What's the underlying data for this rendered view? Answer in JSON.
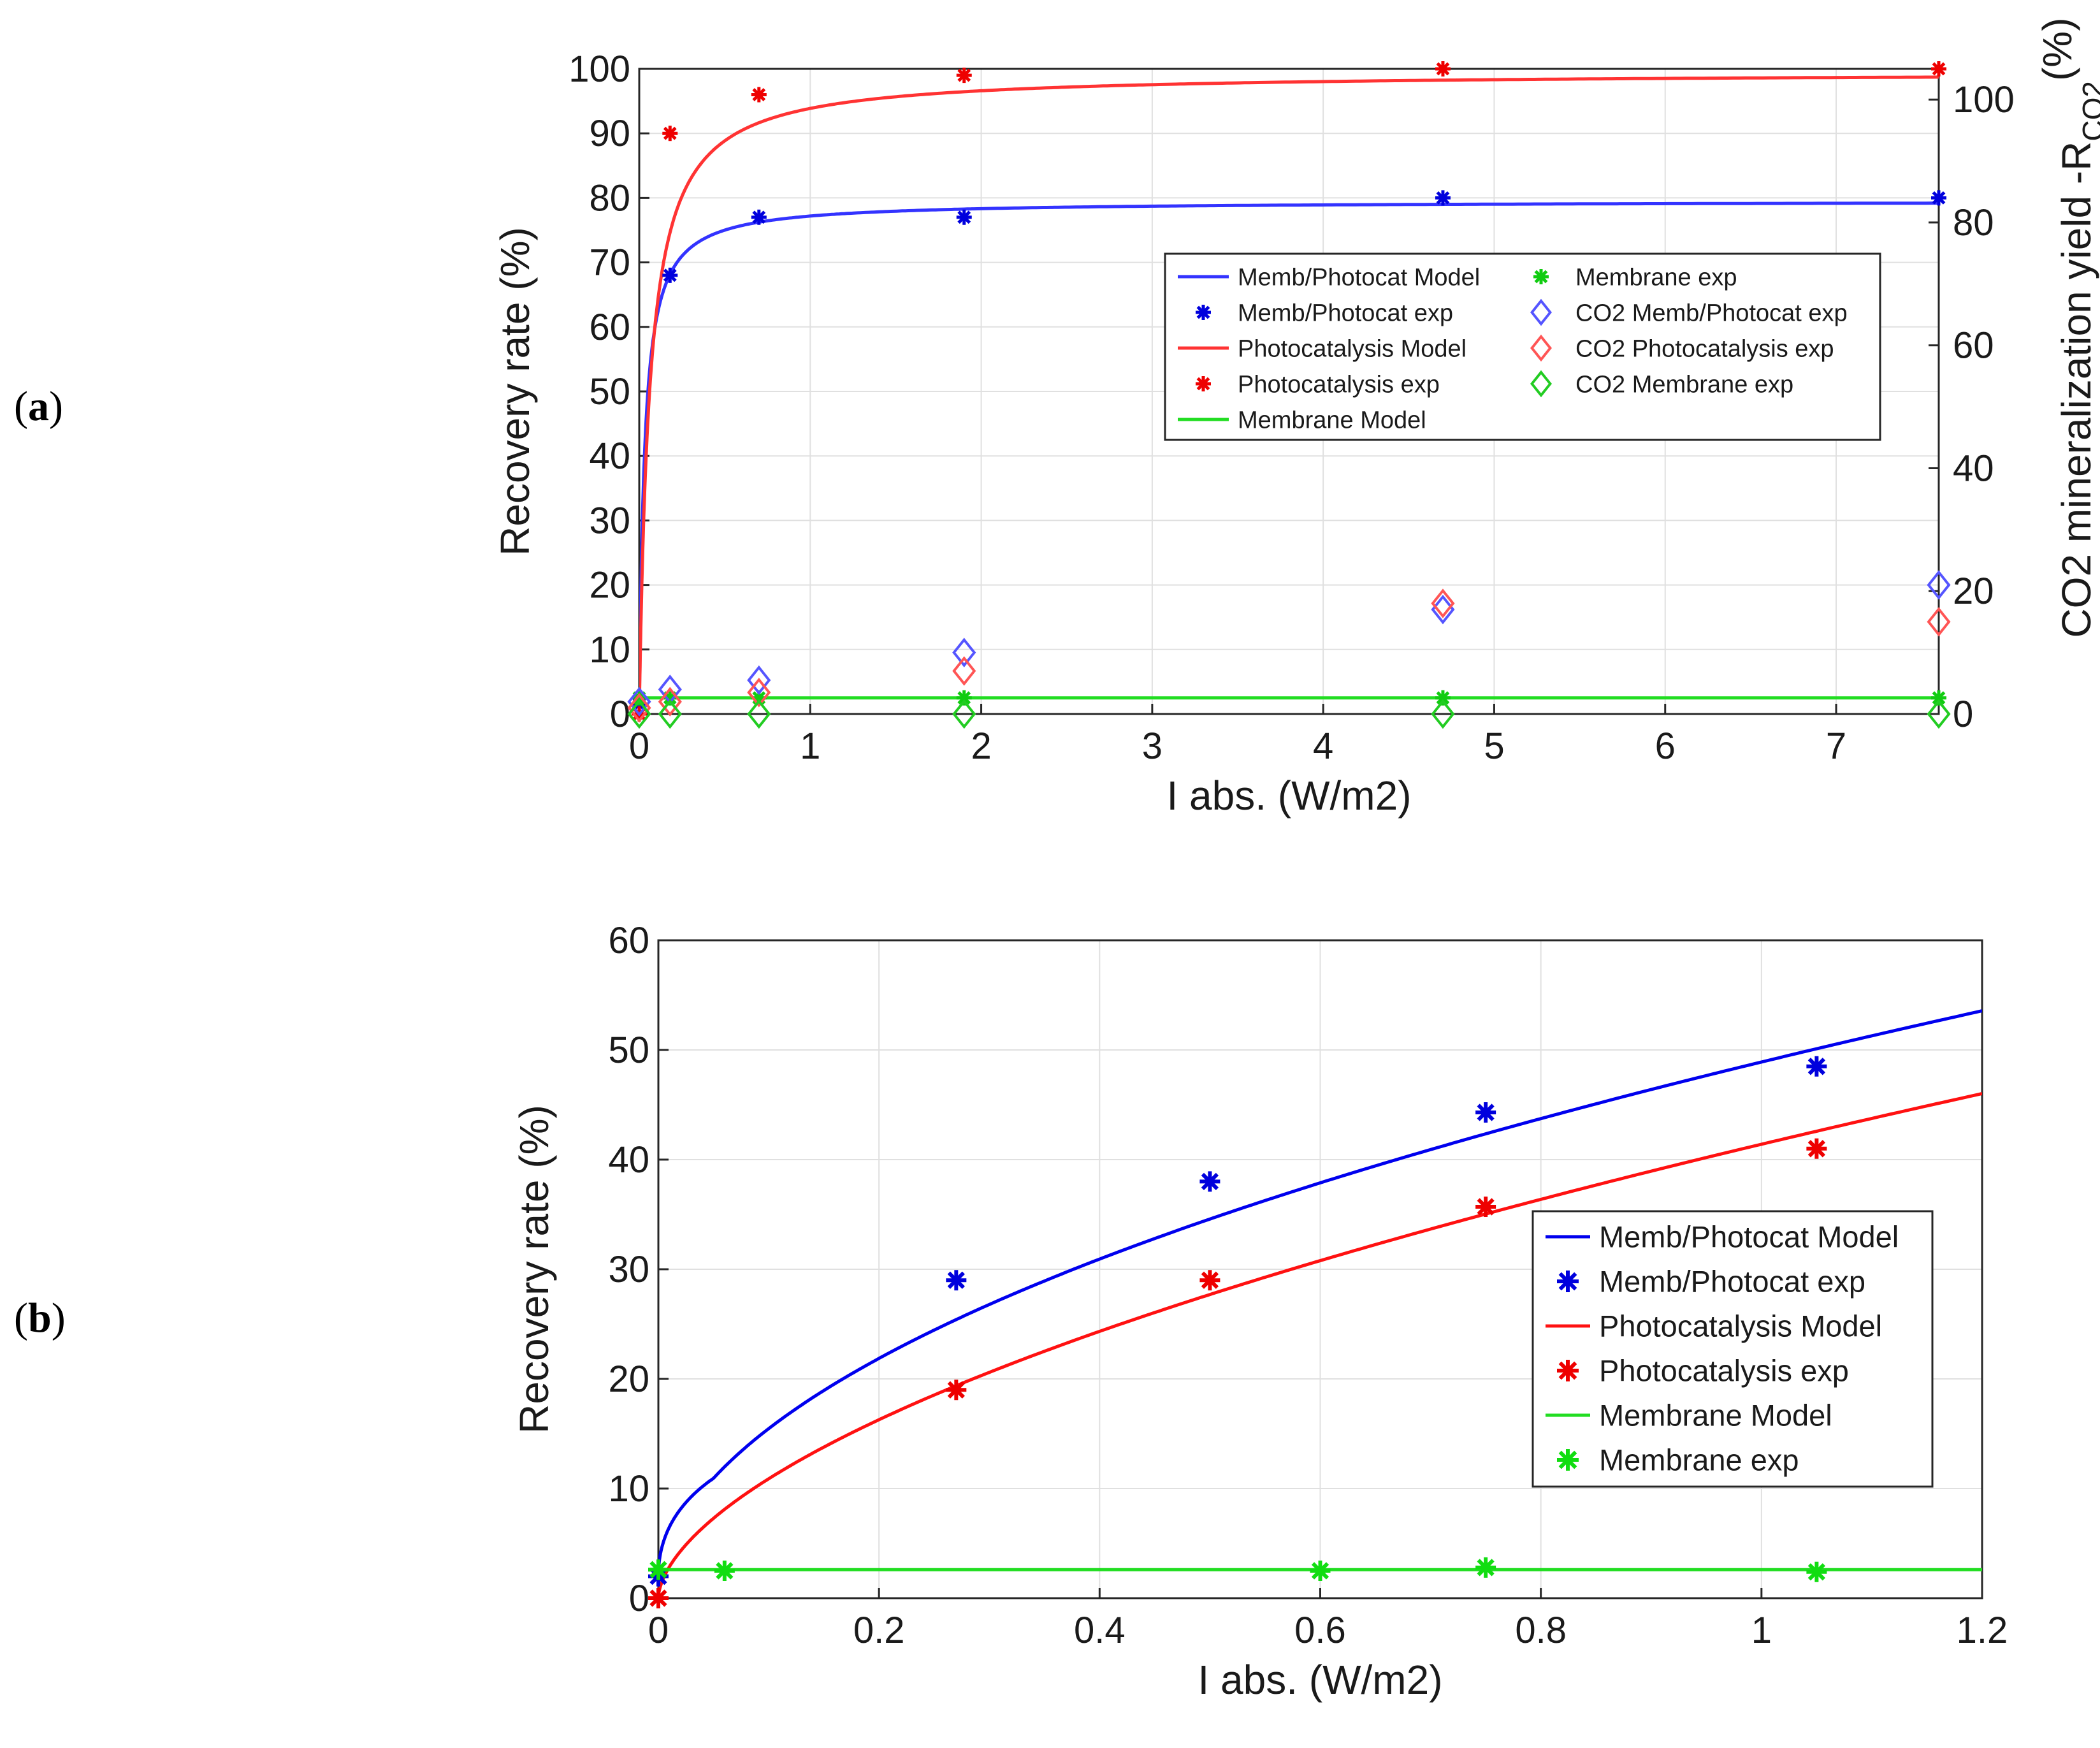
{
  "panel_labels": {
    "a": {
      "open": "(",
      "letter": "a",
      "close": ")"
    },
    "b": {
      "open": "(",
      "letter": "b",
      "close": ")"
    }
  },
  "chart_data": [
    {
      "id": "a",
      "type": "line",
      "title": "",
      "xlabel": "I abs. (W/m2)",
      "ylabel": "Recovery rate (%)",
      "y2label_main": "CO2 mineralization yield -R",
      "y2label_sub": "CO2",
      "y2label_unit": "(%)",
      "xlim": [
        0,
        7.6
      ],
      "ylim": [
        0,
        100
      ],
      "y2lim": [
        0,
        105
      ],
      "xticks": [
        "0",
        "1",
        "2",
        "3",
        "4",
        "5",
        "6",
        "7"
      ],
      "yticks": [
        "0",
        "10",
        "20",
        "30",
        "40",
        "50",
        "60",
        "70",
        "80",
        "90",
        "100"
      ],
      "y2ticks": [
        "0",
        "20",
        "40",
        "60",
        "80",
        "100"
      ],
      "grid": true,
      "legend_position": "center-right",
      "legend": [
        {
          "label": "Memb/Photocat Model",
          "color": "#3333ff",
          "marker": "line"
        },
        {
          "label": "Memb/Photocat exp",
          "color": "#0000dd",
          "marker": "star"
        },
        {
          "label": "Photocatalysis Model",
          "color": "#ff3333",
          "marker": "line"
        },
        {
          "label": "Photocatalysis exp",
          "color": "#ee0000",
          "marker": "star"
        },
        {
          "label": "Membrane Model",
          "color": "#22dd22",
          "marker": "line"
        },
        {
          "label": "Membrane exp",
          "color": "#11cc11",
          "marker": "star"
        },
        {
          "label": "CO2 Memb/Photocat exp",
          "color": "#5555ff",
          "marker": "diamond"
        },
        {
          "label": "CO2 Photocatalysis exp",
          "color": "#ff5555",
          "marker": "diamond"
        },
        {
          "label": "CO2 Membrane exp",
          "color": "#22cc22",
          "marker": "diamond"
        }
      ],
      "series": [
        {
          "name": "Memb/Photocat Model",
          "kind": "model",
          "color": "#3333ff",
          "ymax": 79.5,
          "k": 0.03,
          "axis": "left"
        },
        {
          "name": "Photocatalysis Model",
          "kind": "model",
          "color": "#ff3333",
          "ymax": 99.5,
          "k": 0.06,
          "axis": "left"
        },
        {
          "name": "Membrane Model",
          "kind": "flat",
          "color": "#22dd22",
          "value": 2.5,
          "axis": "left"
        },
        {
          "name": "Memb/Photocat exp",
          "kind": "star",
          "color": "#0000dd",
          "axis": "left",
          "x": [
            0,
            0.18,
            0.7,
            1.9,
            4.7,
            7.6
          ],
          "y": [
            1.5,
            68,
            77,
            77,
            80,
            80
          ]
        },
        {
          "name": "Photocatalysis exp",
          "kind": "star",
          "color": "#ee0000",
          "axis": "left",
          "x": [
            0,
            0.18,
            0.7,
            1.9,
            4.7,
            7.6
          ],
          "y": [
            0,
            90,
            96,
            99,
            100,
            100
          ]
        },
        {
          "name": "Membrane exp",
          "kind": "star",
          "color": "#11cc11",
          "axis": "left",
          "x": [
            0,
            0.18,
            0.7,
            1.9,
            4.7,
            7.6
          ],
          "y": [
            2.5,
            2.5,
            2.5,
            2.5,
            2.5,
            2.5
          ]
        },
        {
          "name": "CO2 Memb/Photocat exp",
          "kind": "diamond",
          "color": "#5555ff",
          "axis": "right",
          "x": [
            0,
            0.18,
            0.7,
            1.9,
            4.7,
            7.6
          ],
          "y": [
            2,
            4,
            5.5,
            10,
            17,
            21
          ]
        },
        {
          "name": "CO2 Photocatalysis exp",
          "kind": "diamond",
          "color": "#ff5555",
          "axis": "right",
          "x": [
            0,
            0.18,
            0.7,
            1.9,
            4.7,
            7.6
          ],
          "y": [
            1,
            2,
            3.5,
            7,
            18,
            15
          ]
        },
        {
          "name": "CO2 Membrane exp",
          "kind": "diamond",
          "color": "#22cc22",
          "axis": "right",
          "x": [
            0,
            0.18,
            0.7,
            1.9,
            4.7,
            7.6
          ],
          "y": [
            0,
            0,
            0,
            0,
            0,
            0
          ]
        }
      ]
    },
    {
      "id": "b",
      "type": "line",
      "title": "",
      "xlabel": "I abs. (W/m2)",
      "ylabel": "Recovery rate (%)",
      "xlim": [
        0,
        1.2
      ],
      "ylim": [
        0,
        60
      ],
      "xticks": [
        "0",
        "0.2",
        "0.4",
        "0.6",
        "0.8",
        "1",
        "1.2"
      ],
      "yticks": [
        "0",
        "10",
        "20",
        "30",
        "40",
        "50",
        "60"
      ],
      "grid": true,
      "legend_position": "center-right",
      "legend": [
        {
          "label": "Memb/Photocat Model",
          "color": "#0000ee",
          "marker": "line"
        },
        {
          "label": "Memb/Photocat exp",
          "color": "#0000dd",
          "marker": "star"
        },
        {
          "label": "Photocatalysis Model",
          "color": "#ff1111",
          "marker": "line"
        },
        {
          "label": "Photocatalysis exp",
          "color": "#ee0000",
          "marker": "star"
        },
        {
          "label": "Membrane Model",
          "color": "#22dd22",
          "marker": "line"
        },
        {
          "label": "Membrane exp",
          "color": "#11dd11",
          "marker": "star"
        }
      ],
      "series": [
        {
          "name": "Memb/Photocat Model",
          "kind": "power",
          "color": "#0000ee",
          "a": 48.9,
          "p": 0.5
        },
        {
          "name": "Photocatalysis Model",
          "kind": "power",
          "color": "#ff1111",
          "a": 41.4,
          "p": 0.58
        },
        {
          "name": "Membrane Model",
          "kind": "flat",
          "color": "#22dd22",
          "value": 2.6
        },
        {
          "name": "Memb/Photocat exp",
          "kind": "star",
          "color": "#0000dd",
          "x": [
            0,
            0.27,
            0.5,
            0.75,
            1.05
          ],
          "y": [
            2,
            29,
            38,
            44.3,
            48.5
          ]
        },
        {
          "name": "Photocatalysis exp",
          "kind": "star",
          "color": "#ee0000",
          "x": [
            0,
            0.27,
            0.5,
            0.75,
            1.05
          ],
          "y": [
            0,
            19,
            29,
            35.7,
            41
          ]
        },
        {
          "name": "Membrane exp",
          "kind": "star",
          "color": "#11dd11",
          "x": [
            0,
            0.06,
            0.6,
            0.75,
            1.05
          ],
          "y": [
            2.6,
            2.5,
            2.5,
            2.8,
            2.4
          ]
        }
      ]
    }
  ]
}
